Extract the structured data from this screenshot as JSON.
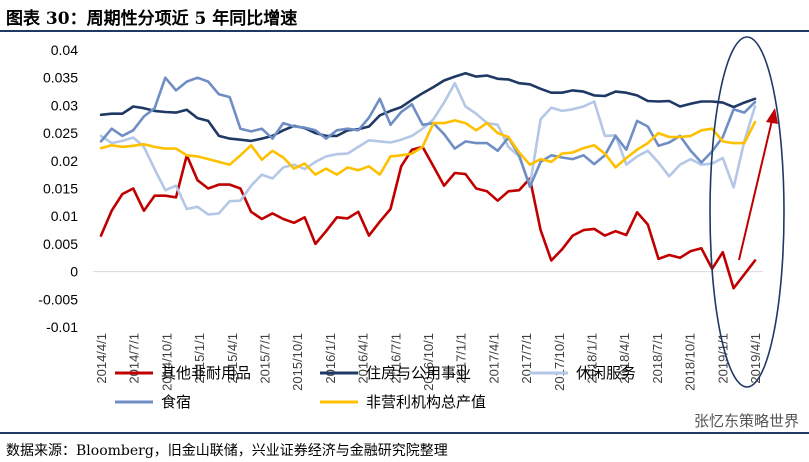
{
  "title": "图表 30：周期性分项近 5 年同比增速",
  "source": "数据来源：Bloomberg，旧金山联储，兴业证券经济与金融研究院整理",
  "watermark": "张忆东策略世界",
  "chart_data": {
    "type": "line",
    "ylim": [
      -0.01,
      0.04
    ],
    "yticks": [
      -0.01,
      -0.005,
      0,
      0.005,
      0.01,
      0.015,
      0.02,
      0.025,
      0.03,
      0.035,
      0.04
    ],
    "ytick_labels": [
      "-0.01",
      "-0.005",
      "0",
      "0.005",
      "0.01",
      "0.015",
      "0.02",
      "0.025",
      "0.03",
      "0.035",
      "0.04"
    ],
    "xtick_labels": [
      "2014/4/1",
      "2014/7/1",
      "2014/10/1",
      "2015/1/1",
      "2015/4/1",
      "2015/7/1",
      "2015/10/1",
      "2016/1/1",
      "2016/4/1",
      "2016/7/1",
      "2016/10/1",
      "2017/1/1",
      "2017/4/1",
      "2017/7/1",
      "2017/10/1",
      "2018/1/1",
      "2018/4/1",
      "2018/7/1",
      "2018/10/1",
      "2019/1/1",
      "2019/4/1"
    ],
    "legend": [
      {
        "name": "其他非耐用品",
        "color": "#c00000"
      },
      {
        "name": "住房与公用事业",
        "color": "#1f3864"
      },
      {
        "name": "休闲服务",
        "color": "#b4c7e7"
      },
      {
        "name": "食宿",
        "color": "#6f8fc4"
      },
      {
        "name": "非营利机构总产值",
        "color": "#ffc000"
      }
    ],
    "series": [
      {
        "name": "其他非耐用品",
        "color": "#c00000",
        "values": [
          0.0065,
          0.011,
          0.014,
          0.015,
          0.011,
          0.0137,
          0.0137,
          0.0134,
          0.021,
          0.0165,
          0.015,
          0.0157,
          0.0157,
          0.015,
          0.0108,
          0.0095,
          0.0105,
          0.0095,
          0.0088,
          0.0098,
          0.005,
          0.0073,
          0.0098,
          0.0096,
          0.0108,
          0.0065,
          0.009,
          0.0113,
          0.019,
          0.022,
          0.0225,
          0.019,
          0.0155,
          0.0178,
          0.0176,
          0.015,
          0.0145,
          0.0128,
          0.0145,
          0.0147,
          0.0168,
          0.0075,
          0.002,
          0.004,
          0.0065,
          0.0075,
          0.0077,
          0.0065,
          0.0073,
          0.0066,
          0.0107,
          0.0085,
          0.0023,
          0.003,
          0.0025,
          0.0037,
          0.0042,
          0.0005,
          0.0035,
          -0.003,
          -0.0005,
          0.002
        ]
      },
      {
        "name": "住房与公用事业",
        "color": "#1f3864",
        "values": [
          0.0283,
          0.0285,
          0.0285,
          0.0298,
          0.0295,
          0.029,
          0.0288,
          0.0287,
          0.0292,
          0.0277,
          0.0272,
          0.0245,
          0.024,
          0.0238,
          0.0236,
          0.024,
          0.0245,
          0.0255,
          0.0263,
          0.0259,
          0.025,
          0.0245,
          0.0245,
          0.0255,
          0.0257,
          0.0262,
          0.0282,
          0.029,
          0.0297,
          0.031,
          0.0322,
          0.0333,
          0.0345,
          0.0352,
          0.0358,
          0.0352,
          0.0354,
          0.0348,
          0.0347,
          0.034,
          0.0338,
          0.033,
          0.0323,
          0.0323,
          0.0327,
          0.0325,
          0.0318,
          0.0317,
          0.0325,
          0.0323,
          0.0318,
          0.0308,
          0.0307,
          0.0308,
          0.0298,
          0.0303,
          0.0307,
          0.0307,
          0.0305,
          0.0297,
          0.0305,
          0.0312
        ]
      },
      {
        "name": "休闲服务",
        "color": "#b4c7e7",
        "values": [
          0.0245,
          0.0232,
          0.0236,
          0.0242,
          0.0225,
          0.0185,
          0.0147,
          0.0155,
          0.0113,
          0.0117,
          0.0103,
          0.0105,
          0.0127,
          0.0128,
          0.0155,
          0.0175,
          0.0168,
          0.0188,
          0.0193,
          0.0185,
          0.0198,
          0.0208,
          0.0212,
          0.0213,
          0.0225,
          0.0237,
          0.0235,
          0.0233,
          0.0238,
          0.0245,
          0.0258,
          0.0275,
          0.0305,
          0.034,
          0.0298,
          0.0285,
          0.0268,
          0.0265,
          0.0225,
          0.0208,
          0.0155,
          0.0275,
          0.0296,
          0.029,
          0.0293,
          0.0298,
          0.0307,
          0.0245,
          0.0246,
          0.0193,
          0.0208,
          0.0218,
          0.0197,
          0.0172,
          0.0193,
          0.0203,
          0.0193,
          0.0195,
          0.0205,
          0.0152,
          0.0235,
          0.0298
        ]
      },
      {
        "name": "食宿",
        "color": "#6f8fc4",
        "values": [
          0.0235,
          0.0258,
          0.0245,
          0.0255,
          0.028,
          0.0295,
          0.035,
          0.0327,
          0.0343,
          0.035,
          0.0343,
          0.032,
          0.0315,
          0.0258,
          0.0253,
          0.0258,
          0.024,
          0.0268,
          0.0262,
          0.026,
          0.0255,
          0.024,
          0.0255,
          0.0258,
          0.0255,
          0.0278,
          0.0312,
          0.0265,
          0.0288,
          0.0302,
          0.0265,
          0.0268,
          0.0248,
          0.0222,
          0.0235,
          0.0232,
          0.0232,
          0.0218,
          0.0242,
          0.021,
          0.0153,
          0.0198,
          0.021,
          0.0206,
          0.0203,
          0.021,
          0.0194,
          0.021,
          0.0245,
          0.022,
          0.0272,
          0.0262,
          0.0227,
          0.0233,
          0.0245,
          0.0218,
          0.0197,
          0.0217,
          0.0243,
          0.0293,
          0.0287,
          0.0306
        ]
      },
      {
        "name": "非营利机构总产值",
        "color": "#ffc000",
        "values": [
          0.0223,
          0.0228,
          0.0225,
          0.0227,
          0.023,
          0.0225,
          0.0222,
          0.0222,
          0.021,
          0.0208,
          0.0203,
          0.0198,
          0.0193,
          0.021,
          0.0228,
          0.0202,
          0.0218,
          0.0206,
          0.0186,
          0.0195,
          0.0175,
          0.0186,
          0.0175,
          0.0188,
          0.0183,
          0.019,
          0.0175,
          0.0208,
          0.021,
          0.0213,
          0.0225,
          0.0268,
          0.0268,
          0.0273,
          0.0268,
          0.0255,
          0.0268,
          0.025,
          0.0243,
          0.0215,
          0.0193,
          0.0203,
          0.0198,
          0.0213,
          0.0215,
          0.0223,
          0.0228,
          0.0213,
          0.0188,
          0.0205,
          0.022,
          0.0232,
          0.025,
          0.0243,
          0.0243,
          0.0245,
          0.0255,
          0.0258,
          0.0235,
          0.0232,
          0.0232,
          0.027
        ]
      }
    ]
  }
}
